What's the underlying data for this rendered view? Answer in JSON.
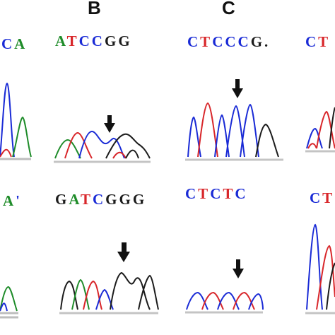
{
  "labels": {
    "b": "B",
    "c": "C"
  },
  "sequences": {
    "a_top": [
      {
        "ch": "C",
        "base": "C"
      },
      {
        "ch": "A",
        "base": "A"
      }
    ],
    "b_top": [
      {
        "ch": "A",
        "base": "A"
      },
      {
        "ch": "T",
        "base": "T"
      },
      {
        "ch": "C",
        "base": "C"
      },
      {
        "ch": "C",
        "base": "C"
      },
      {
        "ch": "G",
        "base": "G"
      },
      {
        "ch": "G",
        "base": "G"
      }
    ],
    "c_top": [
      {
        "ch": "C",
        "base": "C"
      },
      {
        "ch": "T",
        "base": "T"
      },
      {
        "ch": "C",
        "base": "C"
      },
      {
        "ch": "C",
        "base": "C"
      },
      {
        "ch": "C",
        "base": "C"
      },
      {
        "ch": "G",
        "base": "G"
      },
      {
        "ch": ".",
        "base": "G"
      }
    ],
    "d_top": [
      {
        "ch": "C",
        "base": "C"
      },
      {
        "ch": "T",
        "base": "T"
      }
    ],
    "a_bot": [
      {
        "ch": "A",
        "base": "A"
      },
      {
        "ch": "'",
        "base": "C"
      }
    ],
    "b_bot": [
      {
        "ch": "G",
        "base": "G"
      },
      {
        "ch": "A",
        "base": "A"
      },
      {
        "ch": "T",
        "base": "T"
      },
      {
        "ch": "C",
        "base": "C"
      },
      {
        "ch": "G",
        "base": "G"
      },
      {
        "ch": "G",
        "base": "G"
      },
      {
        "ch": "G",
        "base": "G"
      }
    ],
    "c_bot": [
      {
        "ch": "C",
        "base": "C"
      },
      {
        "ch": "T",
        "base": "T"
      },
      {
        "ch": "C",
        "base": "C"
      },
      {
        "ch": "T",
        "base": "T"
      },
      {
        "ch": "C",
        "base": "C"
      }
    ],
    "d_bot": [
      {
        "ch": "C",
        "base": "C"
      },
      {
        "ch": "T",
        "base": "T"
      }
    ]
  },
  "colors": {
    "C": "#1a2bd6",
    "T": "#d8262a",
    "G": "#1c1c1c",
    "A": "#1f8c2a"
  },
  "icons": [
    "down-arrow-icon"
  ]
}
